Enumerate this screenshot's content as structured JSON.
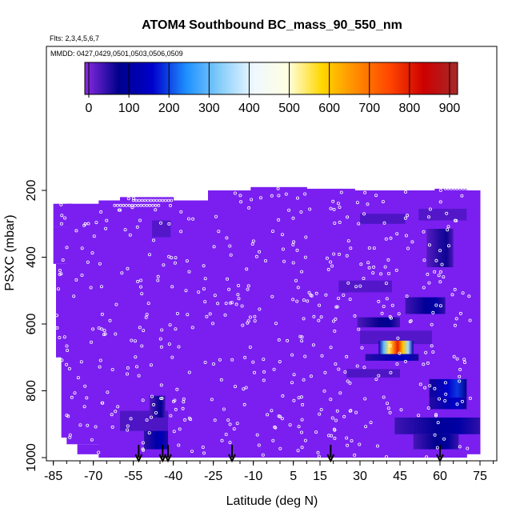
{
  "title": "ATOM4 Southbound BC_mass_90_550_nm",
  "flights_note": "Flts: 2,3,4,5,6,7",
  "dates_note": "MMDD: 0427,0429,0501,0503,0506,0509",
  "colors": {
    "background_fill": "#7a1ff0",
    "point_stroke": "#ffffff",
    "arrow": "#000000",
    "scale": [
      "#8a2be2",
      "#00008b",
      "#0000cd",
      "#1e90ff",
      "#87cefa",
      "#f0f8ff",
      "#ffffe0",
      "#ffd700",
      "#ff8c00",
      "#ff4500",
      "#cd0000",
      "#a52a2a"
    ]
  },
  "chart_data": {
    "type": "heatmap",
    "title": "ATOM4 Southbound BC_mass_90_550_nm",
    "xlabel": "Latitude (deg N)",
    "ylabel": "PSXC (mbar)",
    "xlim": [
      -87,
      81
    ],
    "ylim": [
      1000,
      100
    ],
    "x_ticks": [
      -85,
      -70,
      -55,
      -40,
      -25,
      -10,
      5,
      15,
      30,
      45,
      60,
      75
    ],
    "y_ticks": [
      200,
      400,
      600,
      800,
      1000
    ],
    "colorbar": {
      "ticks": [
        0,
        100,
        200,
        300,
        400,
        500,
        600,
        700,
        800,
        900
      ],
      "range": [
        -10,
        920
      ]
    },
    "enhanced_regions": [
      {
        "lat": [
          56,
          70
        ],
        "p": [
          765,
          820
        ],
        "value": 160
      },
      {
        "lat": [
          56,
          70
        ],
        "p": [
          820,
          855
        ],
        "value": 130
      },
      {
        "lat": [
          43,
          75
        ],
        "p": [
          880,
          930
        ],
        "value": 90
      },
      {
        "lat": [
          50,
          67
        ],
        "p": [
          930,
          975
        ],
        "value": 80
      },
      {
        "lat": [
          47,
          62
        ],
        "p": [
          520,
          570
        ],
        "value": 90
      },
      {
        "lat": [
          32,
          52
        ],
        "p": [
          690,
          710
        ],
        "value": 120
      },
      {
        "lat": [
          37,
          50
        ],
        "p": [
          650,
          690
        ],
        "value": 500
      },
      {
        "lat": [
          -51,
          -42
        ],
        "p": [
          920,
          975
        ],
        "value": 110
      },
      {
        "lat": [
          -49,
          -43
        ],
        "p": [
          815,
          880
        ],
        "value": 60
      },
      {
        "lat": [
          29,
          45
        ],
        "p": [
          580,
          610
        ],
        "value": 70
      },
      {
        "lat": [
          55,
          65
        ],
        "p": [
          315,
          430
        ],
        "value": 55
      }
    ],
    "arrows_latitude": [
      -53,
      -44,
      -42,
      -18,
      19,
      60
    ]
  }
}
